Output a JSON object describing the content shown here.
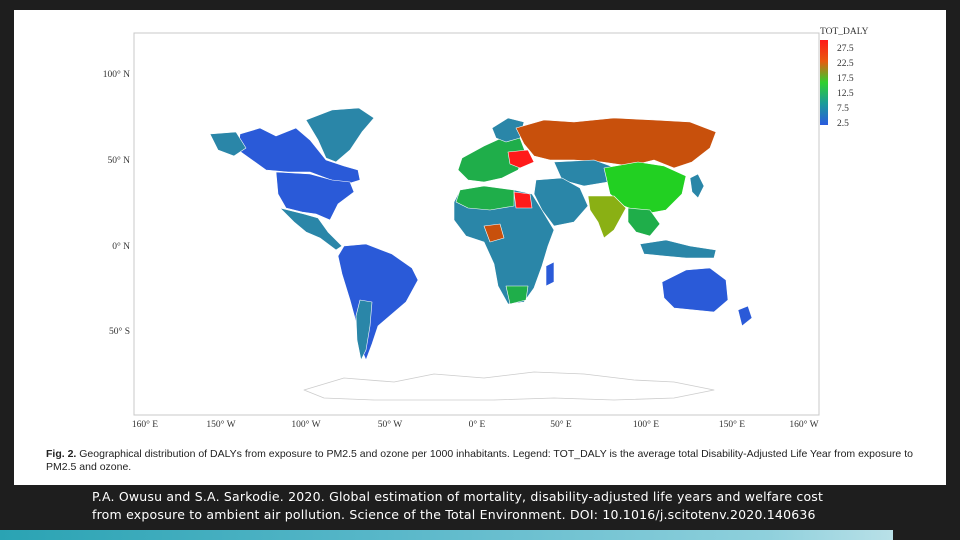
{
  "map": {
    "lat_labels": [
      "100° N",
      "50° N",
      "0° N",
      "50° S"
    ],
    "lon_labels": [
      "160° E",
      "150° W",
      "100° W",
      "50° W",
      "0° E",
      "50° E",
      "100° E",
      "150° E",
      "160° W"
    ],
    "legend": {
      "title": "TOT_DALY",
      "ticks": [
        "27.5",
        "22.5",
        "17.5",
        "12.5",
        "7.5",
        "2.5"
      ],
      "colors": [
        "#ff1a1a",
        "#e85a10",
        "#2fd12f",
        "#1a9a9a",
        "#2a5adf"
      ]
    },
    "colors": {
      "russia": "#c8500c",
      "asia_green": "#22d022",
      "teal": "#2a86a8",
      "blue": "#2a5ad8",
      "red": "#ff1a1a",
      "olive": "#8ab014",
      "green": "#1fae4a",
      "antarctica": "#ffffff"
    }
  },
  "caption": {
    "label": "Fig. 2.",
    "text": "Geographical distribution of DALYs from exposure to PM2.5 and ozone per 1000 inhabitants. Legend: TOT_DALY is the average total Disability-Adjusted Life Year from exposure to PM2.5 and ozone."
  },
  "citation": {
    "text": "P.A. Owusu and S.A. Sarkodie. 2020. Global estimation of mortality, disability-adjusted life years and welfare cost from exposure to ambient air pollution.   Science of the Total Environment. DOI: 10.1016/j.scitotenv.2020.140636"
  }
}
